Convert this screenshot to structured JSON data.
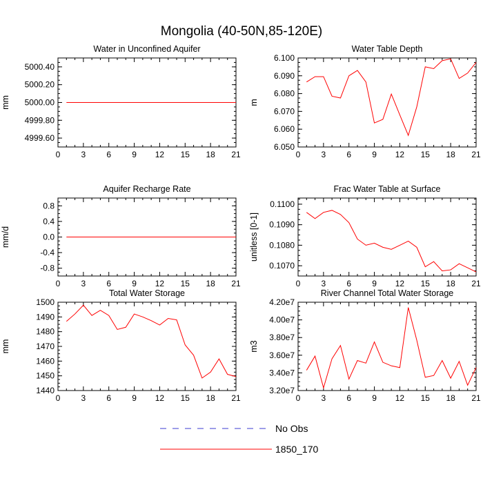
{
  "figure_title": "Mongolia (40-50N,85-120E)",
  "legend": [
    {
      "label": "No Obs",
      "color": "#3b3bd0",
      "dash": true
    },
    {
      "label": "1850_170",
      "color": "#ff0000",
      "dash": false
    }
  ],
  "chart_data": [
    {
      "type": "line",
      "title": "Water in Unconfined Aquifer",
      "ylabel": "mm",
      "xlim": [
        0,
        21
      ],
      "ylim": [
        4999.5,
        5000.5
      ],
      "xticks": [
        0,
        3,
        6,
        9,
        12,
        15,
        18,
        21
      ],
      "yticks": [
        4999.6,
        4999.8,
        5000.0,
        5000.2,
        5000.4
      ],
      "ytick_labels": [
        "4999.60",
        "4999.80",
        "5000.00",
        "5000.20",
        "5000.40"
      ],
      "x": [
        1,
        21
      ],
      "series": [
        {
          "name": "1850_170",
          "color": "#ff0000",
          "values": [
            5000.0,
            5000.0
          ]
        }
      ]
    },
    {
      "type": "line",
      "title": "Water Table Depth",
      "ylabel": "m",
      "xlim": [
        0,
        21
      ],
      "ylim": [
        6.05,
        6.1
      ],
      "xticks": [
        0,
        3,
        6,
        9,
        12,
        15,
        18,
        21
      ],
      "yticks": [
        6.05,
        6.06,
        6.07,
        6.08,
        6.09,
        6.1
      ],
      "ytick_labels": [
        "6.050",
        "6.060",
        "6.070",
        "6.080",
        "6.090",
        "6.100"
      ],
      "x": [
        1,
        2,
        3,
        4,
        5,
        6,
        7,
        8,
        9,
        10,
        11,
        12,
        13,
        14,
        15,
        16,
        17,
        18,
        19,
        20,
        21
      ],
      "series": [
        {
          "name": "1850_170",
          "color": "#ff0000",
          "values": [
            6.0865,
            6.0895,
            6.0895,
            6.0785,
            6.0775,
            6.09,
            6.093,
            6.0865,
            6.0635,
            6.0655,
            6.0797,
            6.068,
            6.0565,
            6.0725,
            6.095,
            6.094,
            6.0985,
            6.0995,
            6.0885,
            6.0915,
            6.0975
          ]
        }
      ]
    },
    {
      "type": "line",
      "title": "Aquifer Recharge Rate",
      "ylabel": "mm/d",
      "xlim": [
        0,
        21
      ],
      "ylim": [
        -1,
        1
      ],
      "xticks": [
        0,
        3,
        6,
        9,
        12,
        15,
        18,
        21
      ],
      "yticks": [
        -0.8,
        -0.4,
        0.0,
        0.4,
        0.8
      ],
      "ytick_labels": [
        "-0.8",
        "-0.4",
        "0.0",
        "0.4",
        "0.8"
      ],
      "x": [
        1,
        21
      ],
      "series": [
        {
          "name": "1850_170",
          "color": "#ff0000",
          "values": [
            0.0,
            0.0
          ]
        }
      ]
    },
    {
      "type": "line",
      "title": "Frac Water Table at Surface",
      "ylabel": "unitless [0-1]",
      "xlim": [
        0,
        21
      ],
      "ylim": [
        0.1065,
        0.1103
      ],
      "xticks": [
        0,
        3,
        6,
        9,
        12,
        15,
        18,
        21
      ],
      "yticks": [
        0.107,
        0.108,
        0.109,
        0.11
      ],
      "ytick_labels": [
        "0.1070",
        "0.1080",
        "0.1090",
        "0.1100"
      ],
      "x": [
        1,
        2,
        3,
        4,
        5,
        6,
        7,
        8,
        9,
        10,
        11,
        12,
        13,
        14,
        15,
        16,
        17,
        18,
        19,
        20,
        21
      ],
      "series": [
        {
          "name": "1850_170",
          "color": "#ff0000",
          "values": [
            0.1096,
            0.1093,
            0.1096,
            0.1097,
            0.1095,
            0.1091,
            0.1083,
            0.108,
            0.1081,
            0.1079,
            0.1078,
            0.108,
            0.1082,
            0.1079,
            0.10695,
            0.1072,
            0.10675,
            0.1068,
            0.1071,
            0.1069,
            0.1067
          ]
        }
      ]
    },
    {
      "type": "line",
      "title": "Total Water Storage",
      "ylabel": "mm",
      "xlim": [
        0,
        21
      ],
      "ylim": [
        1440,
        1500
      ],
      "xticks": [
        0,
        3,
        6,
        9,
        12,
        15,
        18,
        21
      ],
      "yticks": [
        1440,
        1450,
        1460,
        1470,
        1480,
        1490,
        1500
      ],
      "ytick_labels": [
        "1440",
        "1450",
        "1460",
        "1470",
        "1480",
        "1490",
        "1500"
      ],
      "x": [
        1,
        2,
        3,
        4,
        5,
        6,
        7,
        8,
        9,
        10,
        11,
        12,
        13,
        14,
        15,
        16,
        17,
        18,
        19,
        20,
        21
      ],
      "series": [
        {
          "name": "1850_170",
          "color": "#ff0000",
          "values": [
            1487,
            1492,
            1498,
            1491,
            1494.5,
            1491,
            1481.5,
            1483,
            1492,
            1490,
            1487.5,
            1484.5,
            1489,
            1488,
            1471,
            1464,
            1448.5,
            1452.5,
            1461.5,
            1451,
            1449.5
          ]
        }
      ]
    },
    {
      "type": "line",
      "title": "River Channel Total Water Storage",
      "ylabel": "m3",
      "xlim": [
        0,
        21
      ],
      "ylim": [
        32000000,
        42000000
      ],
      "xticks": [
        0,
        3,
        6,
        9,
        12,
        15,
        18,
        21
      ],
      "yticks": [
        32000000,
        34000000,
        36000000,
        38000000,
        40000000,
        42000000
      ],
      "ytick_labels": [
        "3.20e7",
        "3.40e7",
        "3.60e7",
        "3.80e7",
        "4.00e7",
        "4.20e7"
      ],
      "x": [
        1,
        2,
        3,
        4,
        5,
        6,
        7,
        8,
        9,
        10,
        11,
        12,
        13,
        14,
        15,
        16,
        17,
        18,
        19,
        20,
        21
      ],
      "series": [
        {
          "name": "1850_170",
          "color": "#ff0000",
          "values": [
            34300000,
            35900000,
            32300000,
            35600000,
            37100000,
            33300000,
            35400000,
            35100000,
            37500000,
            35200000,
            34800000,
            34600000,
            41400000,
            37700000,
            33500000,
            33700000,
            35400000,
            33400000,
            35300000,
            32600000,
            34600000
          ]
        }
      ]
    }
  ]
}
